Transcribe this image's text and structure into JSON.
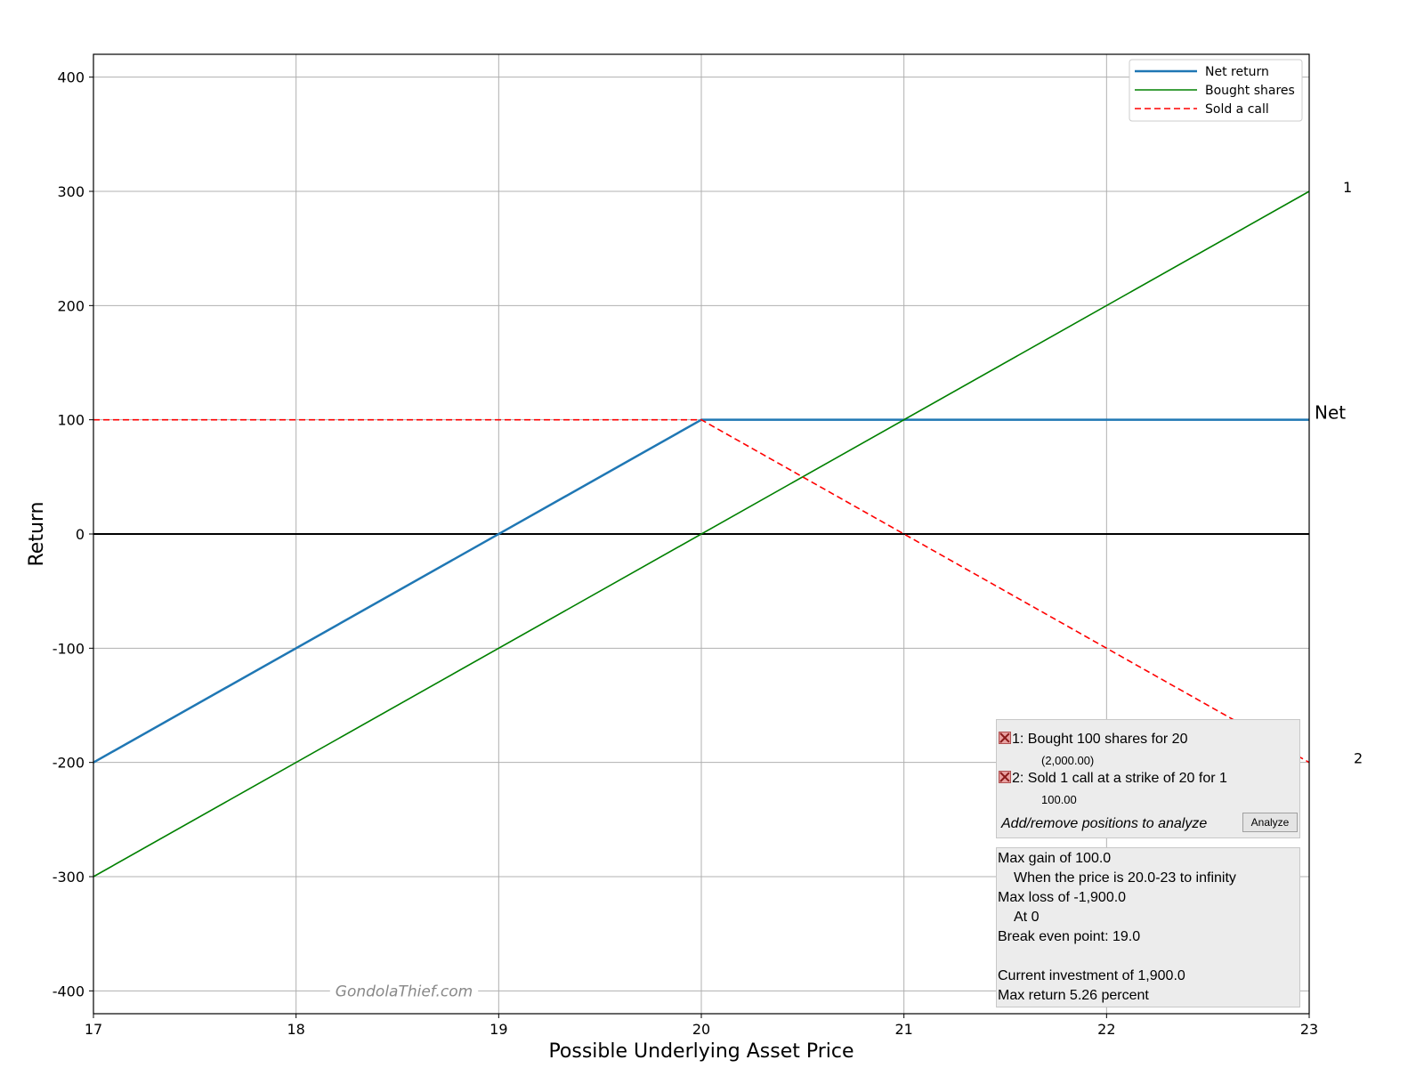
{
  "chart_data": {
    "type": "line",
    "title": "",
    "xlabel": "Possible Underlying Asset Price",
    "ylabel": "Return",
    "xlim": [
      17,
      23
    ],
    "ylim": [
      -420,
      420
    ],
    "xticks": [
      17,
      18,
      19,
      20,
      21,
      22,
      23
    ],
    "yticks": [
      -400,
      -300,
      -200,
      -100,
      0,
      100,
      200,
      300,
      400
    ],
    "grid": true,
    "legend_position": "top-right",
    "series": [
      {
        "name": "Net return",
        "color": "#1f77b4",
        "style": "solid",
        "width": 2.5,
        "x": [
          17,
          20,
          23
        ],
        "y": [
          -200,
          100,
          100
        ]
      },
      {
        "name": "Bought shares",
        "color": "#008000",
        "style": "solid",
        "width": 1.6,
        "x": [
          17,
          23
        ],
        "y": [
          -300,
          300
        ]
      },
      {
        "name": "Sold a call",
        "color": "#ff0000",
        "style": "dashed",
        "width": 1.6,
        "x": [
          17,
          20,
          23
        ],
        "y": [
          100,
          100,
          -200
        ]
      }
    ],
    "end_labels": [
      {
        "text": "1",
        "y": 300
      },
      {
        "text": "Net",
        "y": 100
      },
      {
        "text": "2",
        "y": -200
      }
    ],
    "watermark": "GondolaThief.com"
  },
  "positions": [
    {
      "label": "1: Bought 100 shares for 20",
      "detail": "(2,000.00)"
    },
    {
      "label": "2: Sold 1 call at a strike of 20 for 1",
      "detail": "100.00"
    }
  ],
  "positions_hint": "Add/remove positions to analyze",
  "analyze_label": "Analyze",
  "summary": {
    "max_gain": "Max gain of 100.0",
    "max_gain_when": "When the price is 20.0-23 to infinity",
    "max_loss": "Max loss of -1,900.0",
    "max_loss_at": "At 0",
    "break_even": "Break even point: 19.0",
    "investment": "Current investment of 1,900.0",
    "max_return": "Max return 5.26 percent"
  }
}
